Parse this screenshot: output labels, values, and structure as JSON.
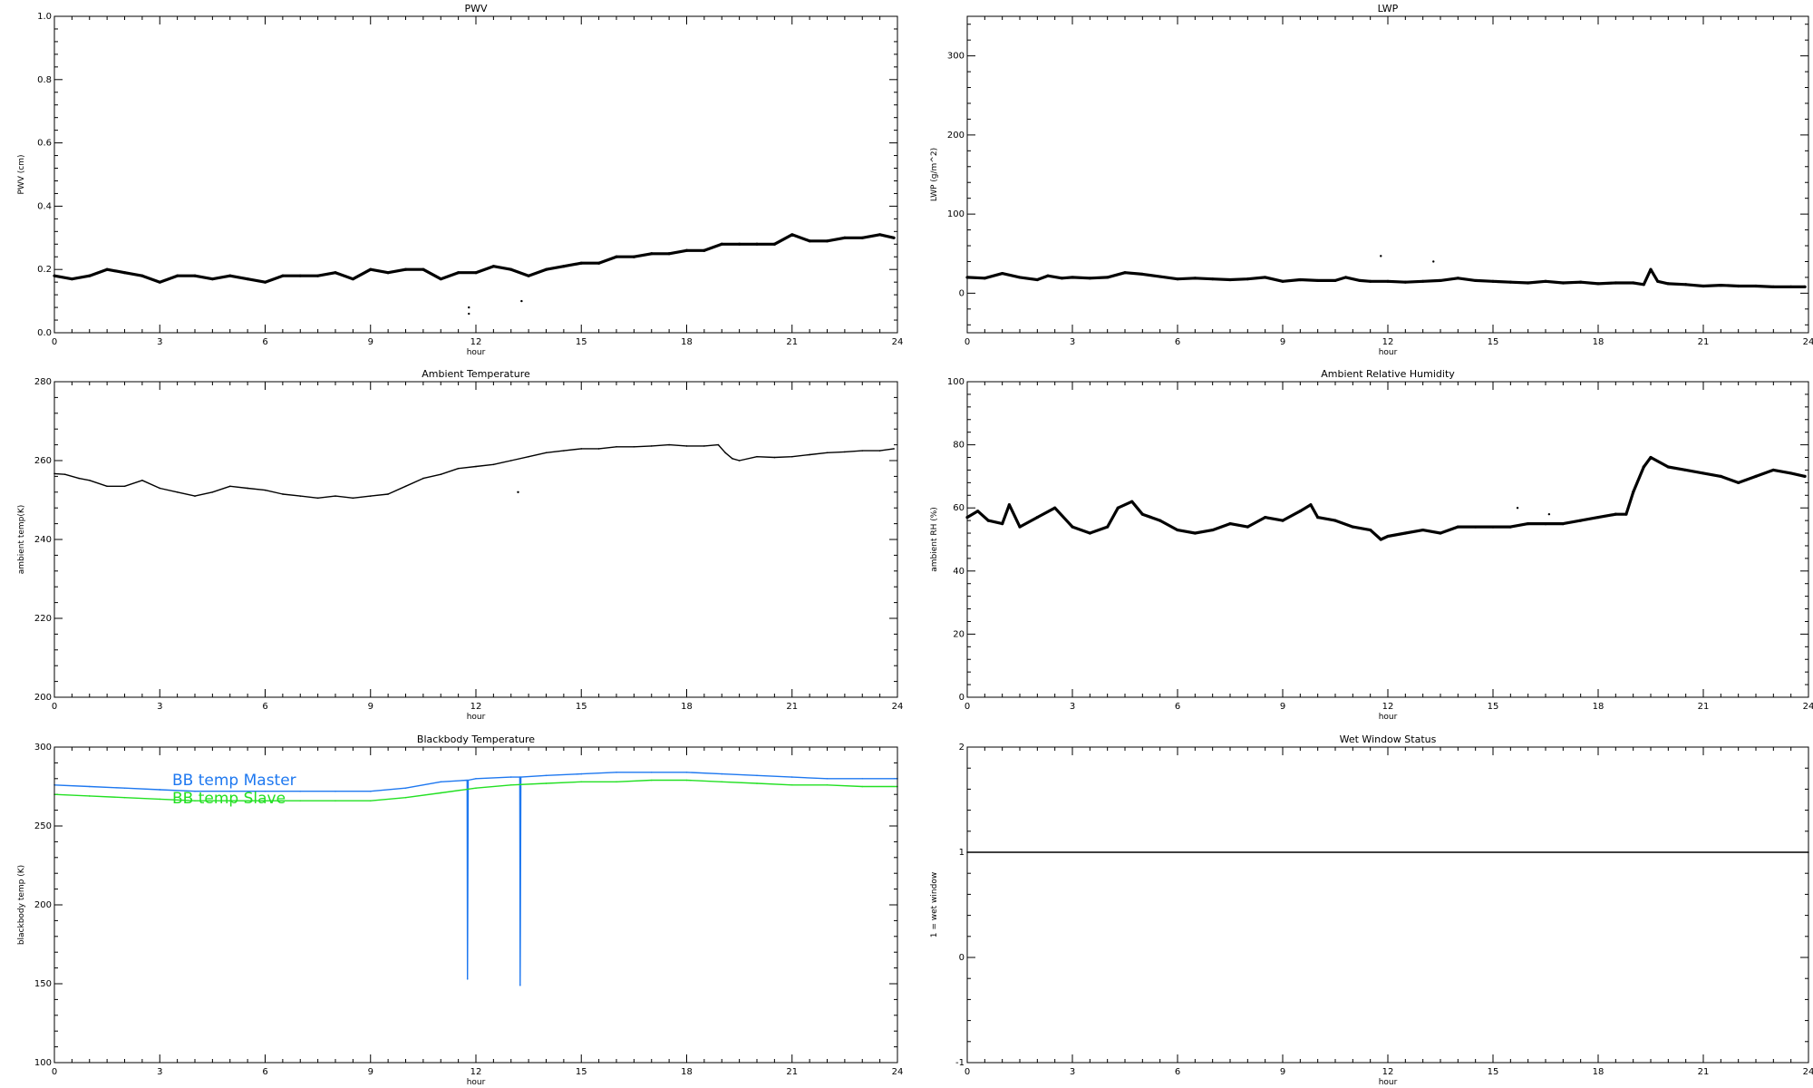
{
  "chart_data": [
    {
      "id": "pwv",
      "type": "scatter",
      "title": "PWV",
      "xlabel": "hour",
      "ylabel": "PWV (cm)",
      "xlim": [
        0,
        24
      ],
      "ylim": [
        0.0,
        1.0
      ],
      "xticks": [
        "0",
        "3",
        "6",
        "9",
        "12",
        "15",
        "18",
        "21",
        "24"
      ],
      "yticks": [
        "0.0",
        "0.2",
        "0.4",
        "0.6",
        "0.8",
        "1.0"
      ],
      "series": [
        {
          "color": "#000000",
          "x": [
            0,
            0.5,
            1,
            1.5,
            2,
            2.5,
            3,
            3.5,
            4,
            4.5,
            5,
            5.5,
            6,
            6.5,
            7,
            7.5,
            8,
            8.5,
            9,
            9.5,
            10,
            10.5,
            11,
            11.5,
            12,
            12.5,
            13,
            13.5,
            14,
            14.5,
            15,
            15.5,
            16,
            16.5,
            17,
            17.5,
            18,
            18.5,
            19,
            19.5,
            20,
            20.5,
            21,
            21.5,
            22,
            22.5,
            23,
            23.5,
            23.9
          ],
          "y": [
            0.18,
            0.17,
            0.18,
            0.2,
            0.19,
            0.18,
            0.16,
            0.18,
            0.18,
            0.17,
            0.18,
            0.17,
            0.16,
            0.18,
            0.18,
            0.18,
            0.19,
            0.17,
            0.2,
            0.19,
            0.2,
            0.2,
            0.17,
            0.19,
            0.19,
            0.21,
            0.2,
            0.18,
            0.2,
            0.21,
            0.22,
            0.22,
            0.24,
            0.24,
            0.25,
            0.25,
            0.26,
            0.26,
            0.28,
            0.28,
            0.28,
            0.28,
            0.31,
            0.29,
            0.29,
            0.3,
            0.3,
            0.31,
            0.3
          ]
        }
      ],
      "outliers": {
        "x": [
          11.8,
          11.8,
          13.3
        ],
        "y": [
          0.08,
          0.06,
          0.1
        ]
      }
    },
    {
      "id": "lwp",
      "type": "scatter",
      "title": "LWP",
      "xlabel": "hour",
      "ylabel": "LWP (g/m^2)",
      "xlim": [
        0,
        24
      ],
      "ylim": [
        -50,
        350
      ],
      "xticks": [
        "0",
        "3",
        "6",
        "9",
        "12",
        "15",
        "18",
        "21",
        "24"
      ],
      "yticks": [
        "0",
        "100",
        "200",
        "300"
      ],
      "series": [
        {
          "color": "#000000",
          "x": [
            0,
            0.5,
            1,
            1.5,
            2,
            2.3,
            2.7,
            3,
            3.5,
            4,
            4.5,
            5,
            5.5,
            6,
            6.5,
            7,
            7.5,
            8,
            8.5,
            9,
            9.5,
            10,
            10.5,
            10.8,
            11.2,
            11.5,
            12,
            12.5,
            13,
            13.5,
            14,
            14.5,
            15,
            15.5,
            16,
            16.5,
            17,
            17.5,
            18,
            18.5,
            19,
            19.3,
            19.5,
            19.7,
            20,
            20.5,
            21,
            21.5,
            22,
            22.5,
            23,
            23.5,
            23.9
          ],
          "y": [
            20,
            19,
            25,
            20,
            17,
            22,
            19,
            20,
            19,
            20,
            26,
            24,
            21,
            18,
            19,
            18,
            17,
            18,
            20,
            15,
            17,
            16,
            16,
            20,
            16,
            15,
            15,
            14,
            15,
            16,
            19,
            16,
            15,
            14,
            13,
            15,
            13,
            14,
            12,
            13,
            13,
            11,
            30,
            15,
            12,
            11,
            9,
            10,
            9,
            9,
            8,
            8,
            8
          ]
        }
      ],
      "outliers": {
        "x": [
          11.8,
          13.3
        ],
        "y": [
          47,
          40
        ]
      }
    },
    {
      "id": "ambient-temp",
      "type": "line",
      "title": "Ambient Temperature",
      "xlabel": "hour",
      "ylabel": "ambient temp(K)",
      "xlim": [
        0,
        24
      ],
      "ylim": [
        200,
        280
      ],
      "xticks": [
        "0",
        "3",
        "6",
        "9",
        "12",
        "15",
        "18",
        "21",
        "24"
      ],
      "yticks": [
        "200",
        "220",
        "240",
        "260",
        "280"
      ],
      "series": [
        {
          "color": "#000000",
          "x": [
            0,
            0.3,
            0.7,
            1,
            1.5,
            2,
            2.5,
            3,
            3.5,
            4,
            4.5,
            5,
            5.5,
            6,
            6.5,
            7,
            7.5,
            8,
            8.5,
            9,
            9.5,
            10,
            10.5,
            11,
            11.5,
            12,
            12.5,
            13,
            13.5,
            14,
            14.5,
            15,
            15.5,
            16,
            16.5,
            17,
            17.5,
            18,
            18.5,
            18.9,
            19.1,
            19.3,
            19.5,
            20,
            20.5,
            21,
            21.5,
            22,
            22.5,
            23,
            23.5,
            23.9
          ],
          "y": [
            256.7,
            256.5,
            255.5,
            255,
            253.5,
            253.5,
            255,
            253,
            252,
            251,
            252,
            253.5,
            253,
            252.5,
            251.5,
            251,
            250.5,
            251,
            250.5,
            251,
            251.5,
            253.5,
            255.5,
            256.5,
            258,
            258.5,
            259,
            260,
            261,
            262,
            262.5,
            263,
            263,
            263.5,
            263.5,
            263.7,
            264,
            263.7,
            263.7,
            264,
            262,
            260.5,
            260,
            261,
            260.8,
            261,
            261.5,
            262,
            262.2,
            262.5,
            262.5,
            263
          ]
        }
      ],
      "outliers": {
        "x": [
          13.2
        ],
        "y": [
          252
        ]
      }
    },
    {
      "id": "ambient-rh",
      "type": "scatter",
      "title": "Ambient Relative Humidity",
      "xlabel": "hour",
      "ylabel": "ambient RH (%)",
      "xlim": [
        0,
        24
      ],
      "ylim": [
        0,
        100
      ],
      "xticks": [
        "0",
        "3",
        "6",
        "9",
        "12",
        "15",
        "18",
        "21",
        "24"
      ],
      "yticks": [
        "0",
        "20",
        "40",
        "60",
        "80",
        "100"
      ],
      "series": [
        {
          "color": "#000000",
          "x": [
            0,
            0.3,
            0.6,
            1,
            1.2,
            1.5,
            2,
            2.5,
            3,
            3.5,
            4,
            4.3,
            4.7,
            5,
            5.5,
            6,
            6.5,
            7,
            7.5,
            8,
            8.5,
            9,
            9.5,
            9.8,
            10,
            10.5,
            11,
            11.5,
            11.8,
            12,
            12.5,
            13,
            13.5,
            14,
            14.5,
            15,
            15.5,
            16,
            16.5,
            17,
            17.5,
            18,
            18.5,
            18.8,
            19,
            19.3,
            19.5,
            20,
            20.5,
            21,
            21.5,
            22,
            22.5,
            23,
            23.5,
            23.9
          ],
          "y": [
            57,
            59,
            56,
            55,
            61,
            54,
            57,
            60,
            54,
            52,
            54,
            60,
            62,
            58,
            56,
            53,
            52,
            53,
            55,
            54,
            57,
            56,
            59,
            61,
            57,
            56,
            54,
            53,
            50,
            51,
            52,
            53,
            52,
            54,
            54,
            54,
            54,
            55,
            55,
            55,
            56,
            57,
            58,
            58,
            65,
            73,
            76,
            73,
            72,
            71,
            70,
            68,
            70,
            72,
            71,
            70
          ]
        }
      ],
      "outliers": {
        "x": [
          15.7,
          16.6
        ],
        "y": [
          60,
          58
        ]
      }
    },
    {
      "id": "blackbody-temp",
      "type": "line",
      "title": "Blackbody Temperature",
      "xlabel": "hour",
      "ylabel": "blackbody temp (K)",
      "xlim": [
        0,
        24
      ],
      "ylim": [
        100,
        300
      ],
      "xticks": [
        "0",
        "3",
        "6",
        "9",
        "12",
        "15",
        "18",
        "21",
        "24"
      ],
      "yticks": [
        "100",
        "150",
        "200",
        "250",
        "300"
      ],
      "legend": [
        "BB temp Master",
        "BB temp Slave"
      ],
      "series": [
        {
          "name": "BB temp Master",
          "color": "#1e78f0",
          "x": [
            0,
            1,
            2,
            3,
            4,
            5,
            6,
            7,
            8,
            9,
            10,
            11,
            11.75,
            11.76,
            11.78,
            12,
            13,
            13.25,
            13.26,
            13.28,
            14,
            15,
            16,
            17,
            18,
            19,
            20,
            21,
            22,
            23,
            24
          ],
          "y": [
            276,
            275,
            274,
            273,
            272,
            272,
            272,
            272,
            272,
            272,
            274,
            278,
            279,
            153,
            279,
            280,
            281,
            281,
            149,
            281,
            282,
            283,
            284,
            284,
            284,
            283,
            282,
            281,
            280,
            280,
            280
          ]
        },
        {
          "name": "BB temp Slave",
          "color": "#22e022",
          "x": [
            0,
            1,
            2,
            3,
            4,
            5,
            6,
            7,
            8,
            9,
            10,
            11,
            12,
            13,
            14,
            15,
            16,
            17,
            18,
            19,
            20,
            21,
            22,
            23,
            24
          ],
          "y": [
            270,
            269,
            268,
            267,
            266,
            266,
            266,
            266,
            266,
            266,
            268,
            271,
            274,
            276,
            277,
            278,
            278,
            279,
            279,
            278,
            277,
            276,
            276,
            275,
            275
          ]
        }
      ]
    },
    {
      "id": "wet-window",
      "type": "line",
      "title": "Wet Window Status",
      "xlabel": "hour",
      "ylabel": "1 = wet window",
      "xlim": [
        0,
        24
      ],
      "ylim": [
        -1,
        2
      ],
      "xticks": [
        "0",
        "3",
        "6",
        "9",
        "12",
        "15",
        "18",
        "21",
        "24"
      ],
      "yticks": [
        "-1",
        "0",
        "1",
        "2"
      ],
      "series": [
        {
          "color": "#000000",
          "x": [
            0,
            24
          ],
          "y": [
            1,
            1
          ]
        }
      ]
    }
  ]
}
